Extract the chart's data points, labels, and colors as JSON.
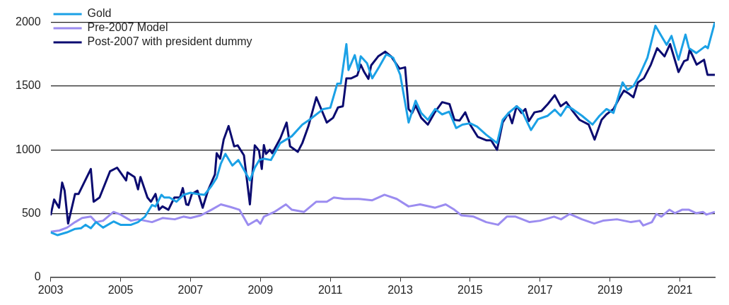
{
  "chart_data": {
    "type": "line",
    "xlim": [
      2003,
      2022
    ],
    "xticks": [
      2003,
      2005,
      2007,
      2009,
      2011,
      2013,
      2015,
      2017,
      2019,
      2021
    ],
    "ylim": [
      0,
      2000
    ],
    "yticks": [
      0,
      500,
      1000,
      1500,
      2000
    ],
    "grid": "y",
    "legend": "top left",
    "marker": "none",
    "line_style": "solid",
    "series": [
      {
        "name": "Gold",
        "color": "#1ba1e6",
        "x": [
          2003.0,
          2003.2,
          2003.47,
          2003.7,
          2003.87,
          2004.0,
          2004.15,
          2004.3,
          2004.5,
          2004.8,
          2005.0,
          2005.3,
          2005.5,
          2005.7,
          2005.9,
          2006.0,
          2006.17,
          2006.25,
          2006.4,
          2006.6,
          2006.8,
          2007.0,
          2007.2,
          2007.4,
          2007.6,
          2007.75,
          2007.87,
          2008.0,
          2008.2,
          2008.37,
          2008.55,
          2008.7,
          2008.84,
          2008.97,
          2009.1,
          2009.3,
          2009.57,
          2009.9,
          2010.2,
          2010.4,
          2010.8,
          2011.0,
          2011.2,
          2011.3,
          2011.46,
          2011.52,
          2011.7,
          2011.8,
          2011.87,
          2012.05,
          2012.2,
          2012.4,
          2012.6,
          2012.8,
          2013.0,
          2013.24,
          2013.44,
          2013.6,
          2013.79,
          2014.0,
          2014.2,
          2014.4,
          2014.6,
          2014.78,
          2015.0,
          2015.2,
          2015.46,
          2015.77,
          2015.93,
          2016.1,
          2016.33,
          2016.47,
          2016.74,
          2016.94,
          2017.22,
          2017.42,
          2017.59,
          2017.77,
          2017.93,
          2018.2,
          2018.5,
          2018.7,
          2018.9,
          2019.1,
          2019.36,
          2019.5,
          2019.67,
          2019.85,
          2020.07,
          2020.3,
          2020.47,
          2020.62,
          2020.76,
          2020.96,
          2021.16,
          2021.26,
          2021.47,
          2021.73,
          2021.8,
          2022.0
        ],
        "values": [
          353,
          331,
          353,
          380,
          385,
          412,
          385,
          433,
          390,
          438,
          412,
          412,
          433,
          476,
          567,
          556,
          647,
          626,
          626,
          593,
          647,
          663,
          654,
          647,
          716,
          780,
          893,
          968,
          877,
          920,
          834,
          760,
          860,
          920,
          930,
          920,
          1053,
          1107,
          1198,
          1235,
          1320,
          1330,
          1519,
          1519,
          1829,
          1626,
          1743,
          1626,
          1733,
          1679,
          1561,
          1652,
          1749,
          1722,
          1588,
          1214,
          1385,
          1289,
          1235,
          1320,
          1278,
          1300,
          1171,
          1198,
          1208,
          1182,
          1118,
          1053,
          1235,
          1289,
          1342,
          1310,
          1155,
          1240,
          1267,
          1315,
          1267,
          1342,
          1320,
          1267,
          1198,
          1267,
          1320,
          1290,
          1529,
          1470,
          1500,
          1588,
          1722,
          1973,
          1893,
          1823,
          1893,
          1706,
          1904,
          1797,
          1759,
          1813,
          1797,
          2000
        ]
      },
      {
        "name": "Pre-2007 Model",
        "color": "#9b8cf0",
        "x": [
          2003.0,
          2003.25,
          2003.47,
          2003.7,
          2003.9,
          2004.15,
          2004.3,
          2004.5,
          2004.8,
          2005.0,
          2005.3,
          2005.5,
          2005.9,
          2006.2,
          2006.55,
          2006.8,
          2007.0,
          2007.3,
          2007.6,
          2007.87,
          2008.15,
          2008.4,
          2008.65,
          2008.9,
          2009.0,
          2009.1,
          2009.4,
          2009.73,
          2009.9,
          2010.25,
          2010.6,
          2010.9,
          2011.1,
          2011.4,
          2011.8,
          2012.2,
          2012.55,
          2012.9,
          2013.24,
          2013.57,
          2014.0,
          2014.3,
          2014.55,
          2014.75,
          2015.1,
          2015.46,
          2015.8,
          2016.05,
          2016.3,
          2016.7,
          2017.0,
          2017.4,
          2017.6,
          2017.85,
          2018.2,
          2018.55,
          2018.8,
          2019.2,
          2019.6,
          2019.85,
          2019.95,
          2020.2,
          2020.33,
          2020.47,
          2020.7,
          2020.86,
          2021.06,
          2021.26,
          2021.46,
          2021.66,
          2021.76,
          2022.0
        ],
        "values": [
          358,
          367,
          390,
          433,
          465,
          476,
          433,
          444,
          513,
          492,
          444,
          455,
          433,
          465,
          455,
          476,
          465,
          486,
          530,
          572,
          551,
          530,
          410,
          450,
          420,
          476,
          513,
          572,
          530,
          513,
          593,
          593,
          626,
          615,
          615,
          604,
          647,
          615,
          556,
          572,
          546,
          572,
          530,
          486,
          476,
          433,
          412,
          476,
          476,
          433,
          444,
          476,
          455,
          497,
          455,
          422,
          444,
          455,
          433,
          444,
          406,
          433,
          497,
          476,
          530,
          503,
          530,
          530,
          503,
          513,
          492,
          513
        ]
      },
      {
        "name": "Post-2007 with president dummy",
        "color": "#0b0b70",
        "x": [
          2003.0,
          2003.1,
          2003.24,
          2003.33,
          2003.4,
          2003.5,
          2003.7,
          2003.8,
          2004.15,
          2004.23,
          2004.4,
          2004.7,
          2004.9,
          2005.16,
          2005.2,
          2005.4,
          2005.5,
          2005.57,
          2005.77,
          2005.87,
          2006.0,
          2006.1,
          2006.2,
          2006.37,
          2006.54,
          2006.7,
          2006.78,
          2006.88,
          2006.94,
          2007.04,
          2007.2,
          2007.35,
          2007.5,
          2007.7,
          2007.75,
          2007.85,
          2007.95,
          2008.09,
          2008.25,
          2008.35,
          2008.53,
          2008.7,
          2008.84,
          2008.96,
          2009.04,
          2009.1,
          2009.16,
          2009.27,
          2009.34,
          2009.57,
          2009.75,
          2009.85,
          2010.07,
          2010.2,
          2010.37,
          2010.6,
          2010.9,
          2011.08,
          2011.22,
          2011.36,
          2011.46,
          2011.6,
          2011.77,
          2011.87,
          2011.97,
          2012.09,
          2012.17,
          2012.37,
          2012.57,
          2012.74,
          2012.98,
          2013.14,
          2013.24,
          2013.34,
          2013.44,
          2013.6,
          2013.79,
          2013.99,
          2014.2,
          2014.41,
          2014.55,
          2014.7,
          2014.86,
          2015.0,
          2015.22,
          2015.46,
          2015.6,
          2015.77,
          2015.93,
          2016.1,
          2016.2,
          2016.33,
          2016.47,
          2016.58,
          2016.68,
          2016.84,
          2017.04,
          2017.22,
          2017.42,
          2017.59,
          2017.75,
          2017.93,
          2018.13,
          2018.39,
          2018.56,
          2018.76,
          2018.9,
          2019.1,
          2019.26,
          2019.4,
          2019.55,
          2019.67,
          2019.8,
          2019.97,
          2020.17,
          2020.35,
          2020.56,
          2020.72,
          2020.96,
          2021.12,
          2021.22,
          2021.28,
          2021.48,
          2021.69,
          2021.79,
          2022.0
        ],
        "values": [
          486,
          610,
          546,
          743,
          680,
          422,
          654,
          654,
          850,
          593,
          626,
          832,
          860,
          760,
          823,
          787,
          690,
          787,
          626,
          593,
          654,
          530,
          556,
          530,
          626,
          626,
          700,
          572,
          567,
          654,
          680,
          546,
          680,
          807,
          973,
          930,
          1080,
          1187,
          1027,
          1035,
          957,
          572,
          1035,
          995,
          850,
          1037,
          968,
          1000,
          973,
          1090,
          1214,
          1027,
          984,
          1053,
          1182,
          1412,
          1214,
          1251,
          1332,
          1342,
          1561,
          1561,
          1583,
          1668,
          1610,
          1556,
          1663,
          1733,
          1770,
          1733,
          1636,
          1647,
          1320,
          1289,
          1348,
          1251,
          1198,
          1294,
          1374,
          1358,
          1235,
          1230,
          1294,
          1198,
          1101,
          1075,
          1075,
          1000,
          1214,
          1289,
          1208,
          1342,
          1289,
          1320,
          1225,
          1294,
          1305,
          1358,
          1428,
          1342,
          1374,
          1305,
          1235,
          1198,
          1080,
          1235,
          1278,
          1320,
          1401,
          1465,
          1438,
          1412,
          1529,
          1561,
          1668,
          1797,
          1733,
          1829,
          1610,
          1695,
          1706,
          1786,
          1668,
          1706,
          1588,
          1588
        ]
      }
    ]
  }
}
